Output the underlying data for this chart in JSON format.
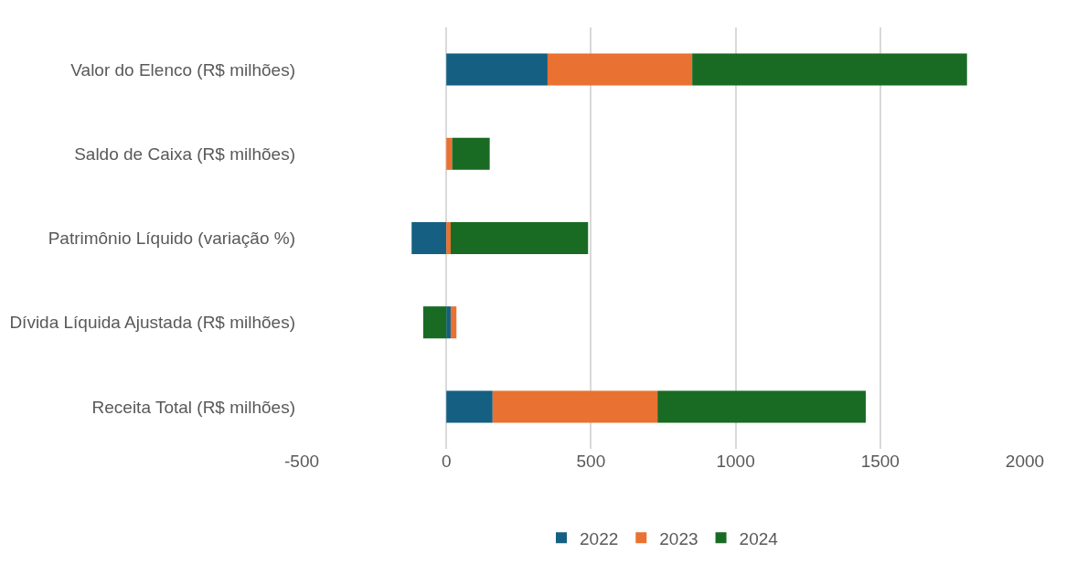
{
  "chart_data": {
    "type": "bar",
    "orientation": "horizontal",
    "stacked": true,
    "categories": [
      "Valor do Elenco (R$ milhões)",
      "Saldo de Caixa (R$ milhões)",
      "Patrimônio Líquido (variação %)",
      "Dívida Líquida Ajustada (R$ milhões)",
      "Receita Total (R$ milhões)"
    ],
    "series": [
      {
        "name": "2022",
        "color": "#156082",
        "values": [
          350,
          0,
          -120,
          15,
          160
        ]
      },
      {
        "name": "2023",
        "color": "#e97132",
        "values": [
          500,
          20,
          15,
          20,
          570
        ]
      },
      {
        "name": "2024",
        "color": "#196b24",
        "values": [
          950,
          130,
          475,
          -80,
          720
        ]
      }
    ],
    "xlim": [
      -500,
      2000
    ],
    "xticks": [
      -500,
      0,
      500,
      1000,
      1500,
      2000
    ],
    "grid": "x",
    "legend": "bottom"
  }
}
